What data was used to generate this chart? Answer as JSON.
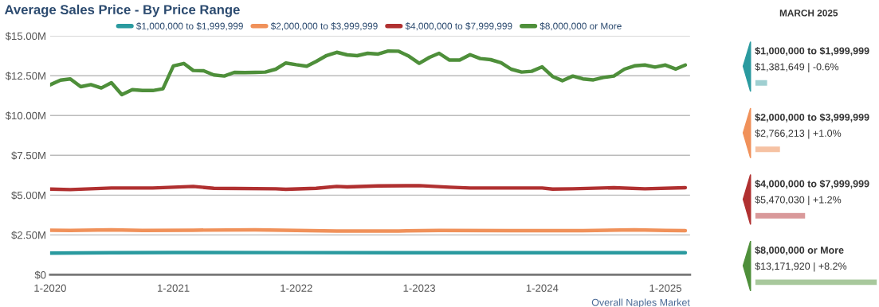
{
  "chart_data": [
    {
      "type": "line",
      "title": "Average Sales Price - By Price Range",
      "series": [
        {
          "name": "$1,000,000 to $1,999,999",
          "color": "#2a9a9f",
          "x": [
            "2020-01",
            "2020-07",
            "2021-01",
            "2022-01",
            "2023-01",
            "2024-03",
            "2025-03"
          ],
          "values": [
            1.36,
            1.38,
            1.4,
            1.39,
            1.38,
            1.38,
            1.38
          ]
        },
        {
          "name": "$2,000,000 to $3,999,999",
          "color": "#f0915a",
          "x": [
            "2020-01",
            "2020-03",
            "2020-07",
            "2020-10",
            "2021-03",
            "2021-09",
            "2022-01",
            "2022-05",
            "2022-11",
            "2023-03",
            "2023-10",
            "2024-05",
            "2024-10",
            "2025-01",
            "2025-03"
          ],
          "values": [
            2.8,
            2.78,
            2.82,
            2.78,
            2.8,
            2.82,
            2.78,
            2.75,
            2.75,
            2.78,
            2.77,
            2.77,
            2.82,
            2.78,
            2.77
          ]
        },
        {
          "name": "$4,000,000 to $7,999,999",
          "color": "#b03030",
          "x": [
            "2020-01",
            "2020-03",
            "2020-07",
            "2020-11",
            "2021-01",
            "2021-03",
            "2021-05",
            "2021-11",
            "2021-12",
            "2022-03",
            "2022-05",
            "2022-06",
            "2022-09",
            "2023-01",
            "2023-04",
            "2023-06",
            "2023-10",
            "2024-01",
            "2024-02",
            "2024-04",
            "2024-08",
            "2024-11",
            "2025-03"
          ],
          "values": [
            5.38,
            5.35,
            5.45,
            5.45,
            5.5,
            5.55,
            5.43,
            5.4,
            5.37,
            5.43,
            5.55,
            5.52,
            5.58,
            5.6,
            5.5,
            5.45,
            5.45,
            5.45,
            5.38,
            5.4,
            5.47,
            5.4,
            5.47
          ]
        },
        {
          "name": "$8,000,000 or More",
          "color": "#4e8f3a",
          "x": [
            "2020-01",
            "2020-02",
            "2020-03",
            "2020-04",
            "2020-05",
            "2020-06",
            "2020-07",
            "2020-08",
            "2020-09",
            "2020-10",
            "2020-11",
            "2020-12",
            "2021-01",
            "2021-02",
            "2021-03",
            "2021-04",
            "2021-05",
            "2021-06",
            "2021-07",
            "2021-08",
            "2021-09",
            "2021-10",
            "2021-11",
            "2021-12",
            "2022-01",
            "2022-02",
            "2022-03",
            "2022-04",
            "2022-05",
            "2022-06",
            "2022-07",
            "2022-08",
            "2022-09",
            "2022-10",
            "2022-11",
            "2022-12",
            "2023-01",
            "2023-02",
            "2023-03",
            "2023-04",
            "2023-05",
            "2023-06",
            "2023-07",
            "2023-08",
            "2023-09",
            "2023-10",
            "2023-11",
            "2023-12",
            "2024-01",
            "2024-02",
            "2024-03",
            "2024-04",
            "2024-05",
            "2024-06",
            "2024-07",
            "2024-08",
            "2024-09",
            "2024-10",
            "2024-11",
            "2024-12",
            "2025-01",
            "2025-02",
            "2025-03"
          ],
          "values": [
            11.93,
            12.22,
            12.3,
            11.81,
            11.94,
            11.73,
            12.06,
            11.31,
            11.62,
            11.57,
            11.57,
            11.68,
            13.12,
            13.27,
            12.83,
            12.81,
            12.55,
            12.48,
            12.71,
            12.7,
            12.71,
            12.73,
            12.91,
            13.3,
            13.19,
            13.1,
            13.4,
            13.77,
            13.97,
            13.81,
            13.76,
            13.91,
            13.86,
            14.05,
            14.04,
            13.73,
            13.28,
            13.66,
            13.91,
            13.48,
            13.48,
            13.82,
            13.58,
            13.51,
            13.32,
            12.91,
            12.73,
            12.78,
            13.06,
            12.45,
            12.19,
            12.48,
            12.3,
            12.24,
            12.39,
            12.48,
            12.91,
            13.12,
            13.17,
            13.04,
            13.17,
            12.92,
            13.17
          ]
        }
      ],
      "xlim": [
        "2020-01-01",
        "2025-03-15"
      ],
      "xticks": [
        {
          "value": "2020-01",
          "label": "1-2020"
        },
        {
          "value": "2021-01",
          "label": "1-2021"
        },
        {
          "value": "2022-01",
          "label": "1-2022"
        },
        {
          "value": "2023-01",
          "label": "1-2023"
        },
        {
          "value": "2024-01",
          "label": "1-2024"
        },
        {
          "value": "2025-01",
          "label": "1-2025"
        }
      ],
      "ylim": [
        0,
        15
      ],
      "yticks": [
        {
          "value": 0,
          "label": "$0"
        },
        {
          "value": 2.5,
          "label": "$2.50M"
        },
        {
          "value": 5,
          "label": "$5.00M"
        },
        {
          "value": 7.5,
          "label": "$7.50M"
        },
        {
          "value": 10,
          "label": "$10.00M"
        },
        {
          "value": 12.5,
          "label": "$12.50M"
        },
        {
          "value": 15,
          "label": "$15.00M"
        }
      ],
      "grid": "y",
      "legend": "top",
      "annotations": [
        "Overall Naples Market"
      ]
    },
    {
      "type": "bar",
      "title": "MARCH 2025",
      "orientation": "horizontal",
      "categories": [
        "$1,000,000 to $1,999,999",
        "$2,000,000 to $3,999,999",
        "$4,000,000 to $7,999,999",
        "$8,000,000 or More"
      ],
      "values": [
        1381649,
        2766213,
        5470030,
        13171920
      ],
      "colors": [
        "#9fcfd1",
        "#f6c2a3",
        "#d9999a",
        "#a8c89c"
      ],
      "value_labels": [
        "$1,381,649 | -0.6%",
        "$2,766,213 | +1.0%",
        "$5,470,030 | +1.2%",
        "$13,171,920 | +8.2%"
      ]
    }
  ]
}
